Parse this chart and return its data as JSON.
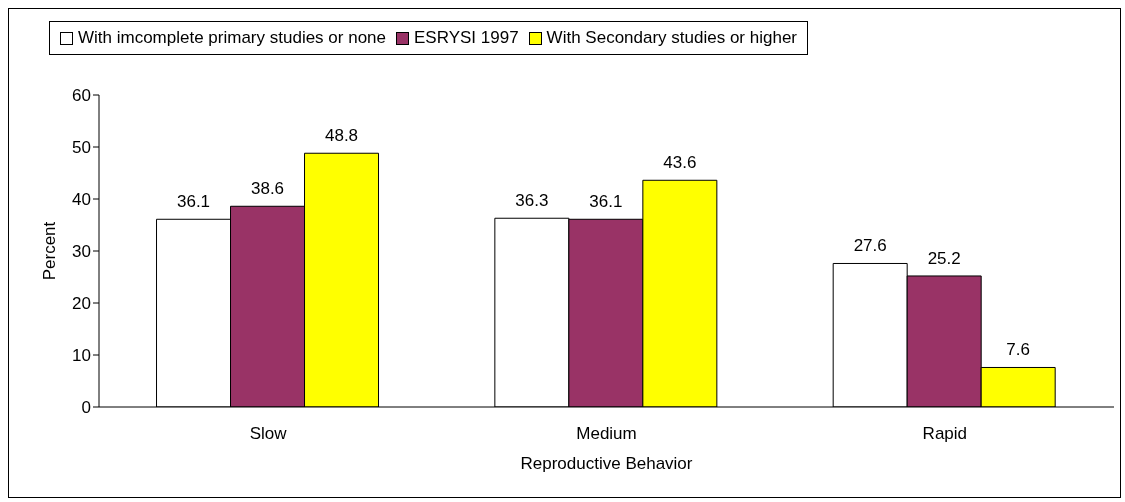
{
  "chart_data": {
    "type": "bar",
    "xlabel": "Reproductive Behavior",
    "ylabel": "Percent",
    "categories": [
      "Slow",
      "Medium",
      "Rapid"
    ],
    "series": [
      {
        "name": "With imcomplete primary studies or none",
        "color": "#ffffff",
        "values": [
          36.1,
          36.3,
          27.6
        ]
      },
      {
        "name": "ESRYSI 1997",
        "color": "#993366",
        "values": [
          38.6,
          36.1,
          25.2
        ]
      },
      {
        "name": "With Secondary studies or higher",
        "color": "#ffff00",
        "values": [
          48.8,
          43.6,
          7.6
        ]
      }
    ],
    "ylim": [
      0,
      60
    ],
    "yticks": [
      0,
      10,
      20,
      30,
      40,
      50,
      60
    ],
    "grid": false,
    "legend": "top",
    "data_labels": true
  }
}
